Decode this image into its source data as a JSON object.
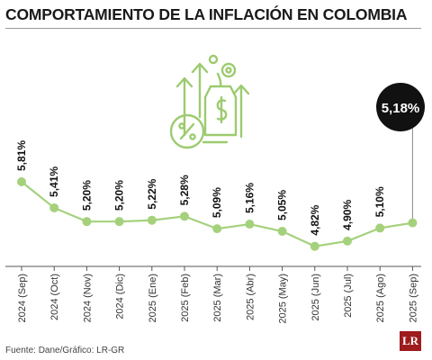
{
  "header": {
    "title": "COMPORTAMIENTO DE LA INFLACIÓN EN COLOMBIA"
  },
  "footer": {
    "source": "Fuente: Dane/Gráfico: LR-GR",
    "logo_text": "LR"
  },
  "colors": {
    "line": "#a5d17c",
    "accent": "#9ccb6f",
    "callout": "#111111",
    "logo": "#9e1b1e"
  },
  "icon": "finance-growth-icon",
  "chart_data": {
    "type": "line",
    "categories": [
      "2024 (Sep)",
      "2024 (Oct)",
      "2024 (Nov)",
      "2024 (Dic)",
      "2025 (Ene)",
      "2025 (Feb)",
      "2025 (Mar)",
      "2025 (Abr)",
      "2025 (May)",
      "2025 (Jun)",
      "2025 (Jul)",
      "2025 (Ago)",
      "2025 (Sep)"
    ],
    "values": [
      5.81,
      5.41,
      5.2,
      5.2,
      5.22,
      5.28,
      5.09,
      5.16,
      5.05,
      4.82,
      4.9,
      5.1,
      5.18
    ],
    "labels": [
      "5,81%",
      "5,41%",
      "5,20%",
      "5,20%",
      "5,22%",
      "5,28%",
      "5,09%",
      "5,16%",
      "5,05%",
      "4,82%",
      "4,90%",
      "5,10%",
      "5,18%"
    ],
    "highlight_index": 12,
    "grid": false,
    "ylim": [
      4.6,
      6.0
    ]
  }
}
